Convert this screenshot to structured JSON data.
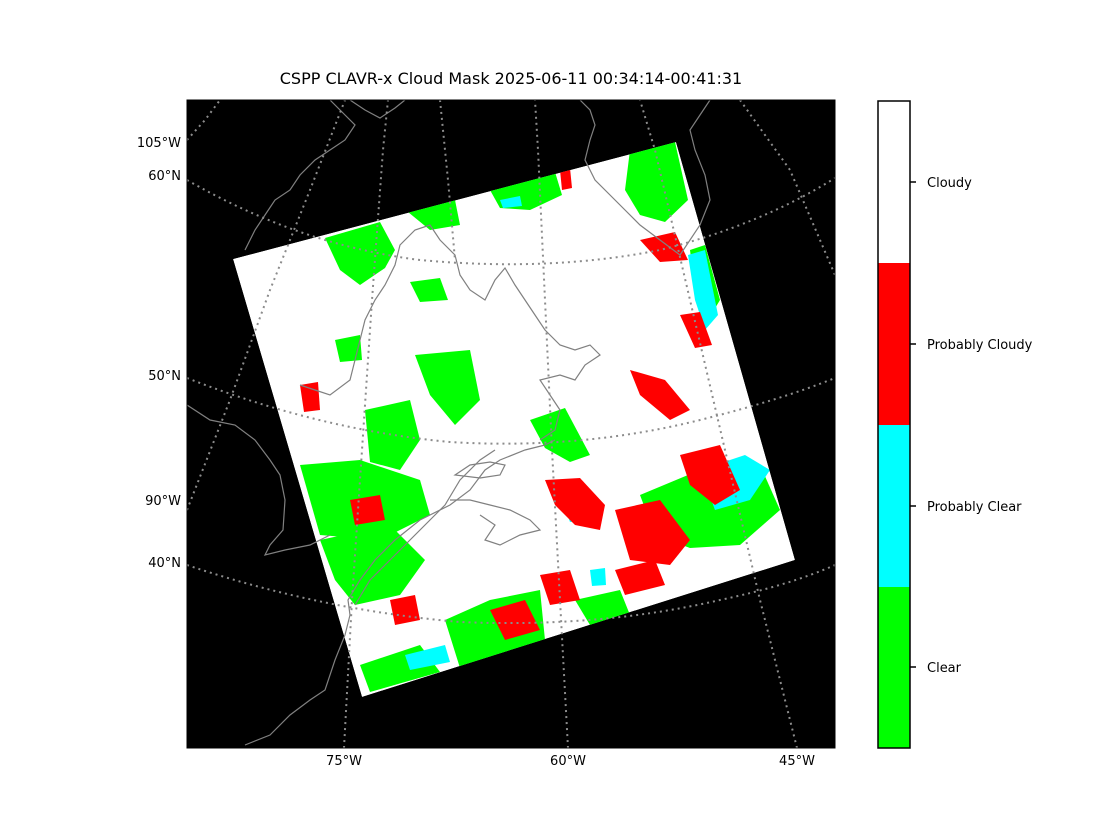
{
  "title": "CSPP CLAVR-x Cloud Mask 2025-06-11 00:34:14-00:41:31",
  "map": {
    "lon_ticks": [
      "75°W",
      "60°W",
      "45°W"
    ],
    "lat_ticks": [
      "60°N",
      "50°N",
      "40°N"
    ],
    "left_lon_ticks": [
      "105°W",
      "90°W"
    ],
    "background_color": "#000000",
    "swath_colors": {
      "cloudy": "#ffffff",
      "probably_cloudy": "#ff0000",
      "probably_clear": "#00ffff",
      "clear": "#00ff00"
    },
    "coastline_color": "#808080",
    "gridline_color": "#8c8c8c"
  },
  "colorbar": {
    "categories": [
      {
        "label": "Cloudy",
        "color": "#ffffff"
      },
      {
        "label": "Probably Cloudy",
        "color": "#ff0000"
      },
      {
        "label": "Probably Clear",
        "color": "#00ffff"
      },
      {
        "label": "Clear",
        "color": "#00ff00"
      }
    ]
  }
}
